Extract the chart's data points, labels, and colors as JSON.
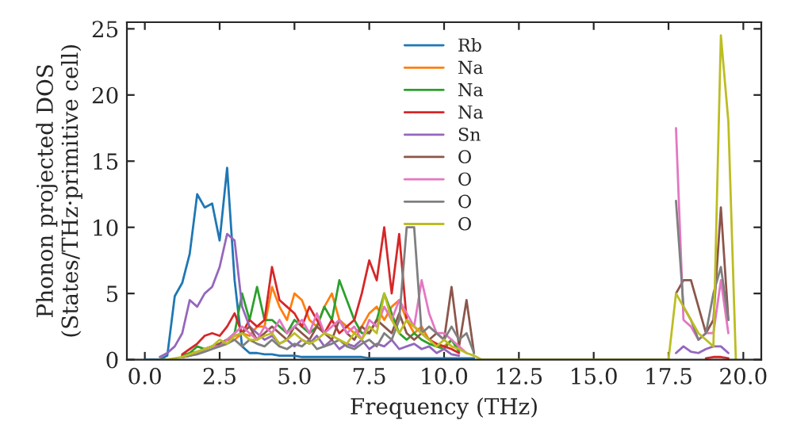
{
  "chart_data": {
    "type": "line",
    "xlabel": "Frequency (THz)",
    "ylabel": "Phonon projected DOS\n(States/THz·primitive cell)",
    "x": [
      0,
      0.25,
      0.5,
      0.75,
      1.0,
      1.25,
      1.5,
      1.75,
      2.0,
      2.25,
      2.5,
      2.75,
      3.0,
      3.25,
      3.5,
      3.75,
      4.0,
      4.25,
      4.5,
      4.75,
      5.0,
      5.25,
      5.5,
      5.75,
      6.0,
      6.25,
      6.5,
      6.75,
      7.0,
      7.25,
      7.5,
      7.75,
      8.0,
      8.25,
      8.5,
      8.75,
      9.0,
      9.25,
      9.5,
      9.75,
      10.0,
      10.25,
      10.5,
      10.75,
      11.0,
      11.25,
      17.5,
      17.75,
      18.0,
      18.25,
      18.5,
      18.75,
      19.0,
      19.25,
      19.5,
      19.75
    ],
    "series": [
      {
        "name": "Rb",
        "color": "#1f77b4",
        "values": [
          0,
          0,
          0,
          0.3,
          4.8,
          5.8,
          8.0,
          12.5,
          11.5,
          11.8,
          9.0,
          14.5,
          6.0,
          1.0,
          0.5,
          0.5,
          0.4,
          0.4,
          0.3,
          0.3,
          0.3,
          0.2,
          0.2,
          0.2,
          0.2,
          0.2,
          0.2,
          0.2,
          0.2,
          0.2,
          0.1,
          0.1,
          0.1,
          0.1,
          0.1,
          0.1,
          0.1,
          0.1,
          0.1,
          0.1,
          0.1,
          0.1,
          0.1,
          0.1,
          0.1,
          null,
          null,
          null,
          null,
          null,
          null,
          null,
          null,
          null,
          null,
          null
        ]
      },
      {
        "name": "Na",
        "color": "#ff7f0e",
        "values": [
          null,
          null,
          null,
          null,
          null,
          0.3,
          0.5,
          0.6,
          0.8,
          1.0,
          1.2,
          1.5,
          1.5,
          2.0,
          1.8,
          2.5,
          2.5,
          5.5,
          4.0,
          3.0,
          5.0,
          4.5,
          3.0,
          2.5,
          4.0,
          5.0,
          3.0,
          2.5,
          2.0,
          2.5,
          3.5,
          4.0,
          3.0,
          4.0,
          4.5,
          3.0,
          2.0,
          2.5,
          1.5,
          1.0,
          1.0,
          1.5,
          0.8,
          null,
          null,
          null,
          null,
          null,
          null,
          null,
          null,
          null,
          null,
          null,
          null,
          null
        ]
      },
      {
        "name": "Na",
        "color": "#2ca02c",
        "values": [
          null,
          null,
          null,
          null,
          null,
          0.3,
          0.5,
          1.0,
          0.8,
          1.0,
          1.2,
          1.5,
          2.0,
          5.0,
          3.0,
          5.5,
          3.0,
          3.0,
          2.5,
          2.0,
          3.0,
          2.5,
          2.0,
          2.5,
          4.0,
          3.0,
          6.0,
          4.5,
          3.0,
          2.0,
          2.0,
          3.0,
          5.0,
          3.5,
          2.0,
          1.5,
          2.0,
          1.5,
          1.2,
          1.0,
          0.8,
          1.5,
          0.6,
          null,
          null,
          null,
          null,
          null,
          null,
          null,
          null,
          null,
          null,
          null,
          null,
          null
        ]
      },
      {
        "name": "Na",
        "color": "#d62728",
        "values": [
          null,
          null,
          null,
          null,
          null,
          0.4,
          0.8,
          1.2,
          1.8,
          2.0,
          1.8,
          2.5,
          3.5,
          2.0,
          3.0,
          2.5,
          3.0,
          7.0,
          4.5,
          4.0,
          3.5,
          2.5,
          4.0,
          3.0,
          2.0,
          3.0,
          2.0,
          2.5,
          3.0,
          5.0,
          7.5,
          6.0,
          10.0,
          5.0,
          9.5,
          3.0,
          2.5,
          2.0,
          1.5,
          1.2,
          1.0,
          0.8,
          0.5,
          null,
          null,
          null,
          null,
          null,
          null,
          null,
          null,
          0.1,
          0.2,
          0.2,
          0.1,
          null
        ]
      },
      {
        "name": "Sn",
        "color": "#9467bd",
        "values": [
          null,
          null,
          0.2,
          0.5,
          1.0,
          2.0,
          4.5,
          4.0,
          5.0,
          5.5,
          7.0,
          9.5,
          9.0,
          4.0,
          2.5,
          2.0,
          1.5,
          1.8,
          1.2,
          1.5,
          1.0,
          1.5,
          1.2,
          1.8,
          1.0,
          1.5,
          0.8,
          1.2,
          1.0,
          1.5,
          0.8,
          1.2,
          1.0,
          1.5,
          0.8,
          1.0,
          1.2,
          0.8,
          1.0,
          0.5,
          0.8,
          0.4,
          0.3,
          null,
          null,
          null,
          null,
          0.5,
          1.0,
          0.6,
          0.5,
          0.8,
          1.0,
          1.0,
          0.5,
          null
        ]
      },
      {
        "name": "O",
        "color": "#8c564b",
        "values": [
          null,
          null,
          null,
          null,
          null,
          0.2,
          0.3,
          0.5,
          0.8,
          1.0,
          1.2,
          1.5,
          1.8,
          2.0,
          2.5,
          1.5,
          2.0,
          2.5,
          2.0,
          1.5,
          2.5,
          2.0,
          1.5,
          2.5,
          2.0,
          1.5,
          3.0,
          2.0,
          1.5,
          2.5,
          2.0,
          3.0,
          2.5,
          2.0,
          3.5,
          2.0,
          1.5,
          2.0,
          1.5,
          2.0,
          1.5,
          5.5,
          1.0,
          4.5,
          0.5,
          null,
          null,
          5.0,
          6.0,
          6.0,
          4.0,
          2.0,
          3.0,
          11.5,
          3.0,
          null
        ]
      },
      {
        "name": "O",
        "color": "#e377c2",
        "values": [
          null,
          null,
          null,
          null,
          null,
          0.2,
          0.3,
          0.5,
          0.8,
          1.0,
          1.0,
          1.5,
          2.0,
          2.5,
          2.0,
          1.5,
          2.5,
          2.0,
          3.0,
          2.0,
          2.5,
          3.0,
          2.0,
          3.5,
          2.0,
          2.5,
          3.0,
          2.0,
          2.5,
          1.5,
          3.0,
          2.5,
          4.0,
          3.0,
          4.5,
          3.5,
          2.5,
          6.0,
          3.5,
          2.0,
          2.0,
          1.5,
          1.0,
          0.5,
          null,
          null,
          null,
          17.5,
          3.0,
          2.5,
          1.5,
          2.0,
          2.0,
          6.0,
          2.0,
          null
        ]
      },
      {
        "name": "O",
        "color": "#7f7f7f",
        "values": [
          null,
          null,
          null,
          null,
          null,
          0.2,
          0.3,
          0.4,
          0.6,
          0.8,
          1.0,
          1.2,
          1.5,
          1.0,
          1.5,
          1.2,
          1.0,
          1.5,
          1.0,
          0.8,
          1.2,
          1.0,
          1.5,
          0.8,
          1.0,
          1.2,
          1.5,
          1.0,
          0.8,
          1.2,
          1.5,
          1.0,
          2.0,
          1.5,
          3.0,
          10.0,
          10.0,
          2.0,
          2.5,
          2.0,
          1.5,
          2.5,
          1.5,
          2.0,
          0.5,
          null,
          null,
          12.0,
          4.0,
          3.0,
          1.5,
          2.0,
          5.0,
          7.0,
          3.0,
          null
        ]
      },
      {
        "name": "O",
        "color": "#bcbd22",
        "values": [
          null,
          null,
          0,
          0,
          0.1,
          0.2,
          0.4,
          0.6,
          0.8,
          1.0,
          1.5,
          1.2,
          1.8,
          2.0,
          1.5,
          1.5,
          1.8,
          2.0,
          1.2,
          1.5,
          2.0,
          1.5,
          1.2,
          1.5,
          2.0,
          1.8,
          1.5,
          1.2,
          2.0,
          1.5,
          2.5,
          2.0,
          5.0,
          3.0,
          2.0,
          3.0,
          2.5,
          2.0,
          1.5,
          1.0,
          1.5,
          1.0,
          0.8,
          0.5,
          0.3,
          0,
          0,
          5.0,
          4.0,
          3.0,
          2.0,
          1.5,
          1.0,
          24.5,
          18.0,
          0
        ]
      }
    ],
    "xlim": [
      -0.6,
      20.6
    ],
    "ylim": [
      0,
      25.5
    ],
    "xticks": [
      {
        "value": 0,
        "label": "0.0"
      },
      {
        "value": 2.5,
        "label": "2.5"
      },
      {
        "value": 5,
        "label": "5.0"
      },
      {
        "value": 7.5,
        "label": "7.5"
      },
      {
        "value": 10,
        "label": "10.0"
      },
      {
        "value": 12.5,
        "label": "12.5"
      },
      {
        "value": 15,
        "label": "15.0"
      },
      {
        "value": 17.5,
        "label": "17.5"
      },
      {
        "value": 20,
        "label": "20.0"
      }
    ],
    "yticks": [
      0,
      5,
      10,
      15,
      20,
      25
    ],
    "legend": "top",
    "grid": false
  }
}
